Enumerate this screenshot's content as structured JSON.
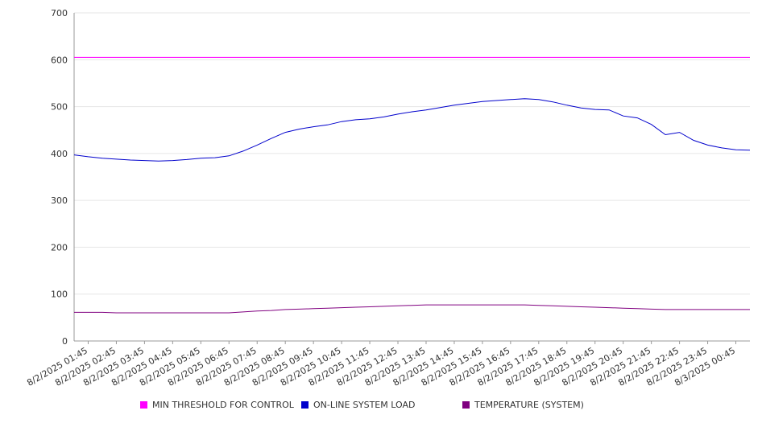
{
  "chart_data": {
    "type": "line",
    "ylim": [
      0,
      700
    ],
    "yticks": [
      0,
      100,
      200,
      300,
      400,
      500,
      600,
      700
    ],
    "grid": true,
    "legend_position": "bottom",
    "x_tick_labels": [
      "8/2/2025 01:45",
      "8/2/2025 02:45",
      "8/2/2025 03:45",
      "8/2/2025 04:45",
      "8/2/2025 05:45",
      "8/2/2025 06:45",
      "8/2/2025 07:45",
      "8/2/2025 08:45",
      "8/2/2025 09:45",
      "8/2/2025 10:45",
      "8/2/2025 11:45",
      "8/2/2025 12:45",
      "8/2/2025 13:45",
      "8/2/2025 14:45",
      "8/2/2025 15:45",
      "8/2/2025 16:45",
      "8/2/2025 17:45",
      "8/2/2025 18:45",
      "8/2/2025 19:45",
      "8/2/2025 20:45",
      "8/2/2025 21:45",
      "8/2/2025 22:45",
      "8/2/2025 23:45",
      "8/3/2025 00:45"
    ],
    "x": [
      "8/2/2025 01:15",
      "8/2/2025 01:45",
      "8/2/2025 02:15",
      "8/2/2025 02:45",
      "8/2/2025 03:15",
      "8/2/2025 03:45",
      "8/2/2025 04:15",
      "8/2/2025 04:45",
      "8/2/2025 05:15",
      "8/2/2025 05:45",
      "8/2/2025 06:15",
      "8/2/2025 06:45",
      "8/2/2025 07:15",
      "8/2/2025 07:45",
      "8/2/2025 08:15",
      "8/2/2025 08:45",
      "8/2/2025 09:15",
      "8/2/2025 09:45",
      "8/2/2025 10:15",
      "8/2/2025 10:45",
      "8/2/2025 11:15",
      "8/2/2025 11:45",
      "8/2/2025 12:15",
      "8/2/2025 12:45",
      "8/2/2025 13:15",
      "8/2/2025 13:45",
      "8/2/2025 14:15",
      "8/2/2025 14:45",
      "8/2/2025 15:15",
      "8/2/2025 15:45",
      "8/2/2025 16:15",
      "8/2/2025 16:45",
      "8/2/2025 17:15",
      "8/2/2025 17:45",
      "8/2/2025 18:15",
      "8/2/2025 18:45",
      "8/2/2025 19:15",
      "8/2/2025 19:45",
      "8/2/2025 20:15",
      "8/2/2025 20:45",
      "8/2/2025 21:15",
      "8/2/2025 21:45",
      "8/2/2025 22:15",
      "8/2/2025 22:45",
      "8/2/2025 23:15",
      "8/2/2025 23:45",
      "8/3/2025 00:15",
      "8/3/2025 00:45",
      "8/3/2025 01:15"
    ],
    "series": [
      {
        "name": "MIN THRESHOLD FOR CONTROL",
        "color": "#ff00ff",
        "values": [
          605,
          605,
          605,
          605,
          605,
          605,
          605,
          605,
          605,
          605,
          605,
          605,
          605,
          605,
          605,
          605,
          605,
          605,
          605,
          605,
          605,
          605,
          605,
          605,
          605,
          605,
          605,
          605,
          605,
          605,
          605,
          605,
          605,
          605,
          605,
          605,
          605,
          605,
          605,
          605,
          605,
          605,
          605,
          605,
          605,
          605,
          605,
          605,
          605
        ]
      },
      {
        "name": "ON-LINE SYSTEM LOAD",
        "color": "#0000cc",
        "values": [
          397,
          393,
          390,
          388,
          386,
          385,
          384,
          385,
          387,
          390,
          391,
          395,
          405,
          418,
          432,
          445,
          452,
          457,
          461,
          468,
          472,
          474,
          478,
          484,
          489,
          493,
          498,
          503,
          507,
          511,
          513,
          515,
          517,
          515,
          510,
          503,
          497,
          494,
          493,
          480,
          476,
          462,
          440,
          445,
          428,
          418,
          412,
          408,
          407
        ]
      },
      {
        "name": "TEMPERATURE (SYSTEM)",
        "color": "#800080",
        "values": [
          61,
          61,
          61,
          60,
          60,
          60,
          60,
          60,
          60,
          60,
          60,
          60,
          62,
          64,
          65,
          67,
          68,
          69,
          70,
          71,
          72,
          73,
          74,
          75,
          76,
          77,
          77,
          77,
          77,
          77,
          77,
          77,
          77,
          76,
          75,
          74,
          73,
          72,
          71,
          70,
          69,
          68,
          67,
          67,
          67,
          67,
          67,
          67,
          67
        ]
      }
    ]
  }
}
